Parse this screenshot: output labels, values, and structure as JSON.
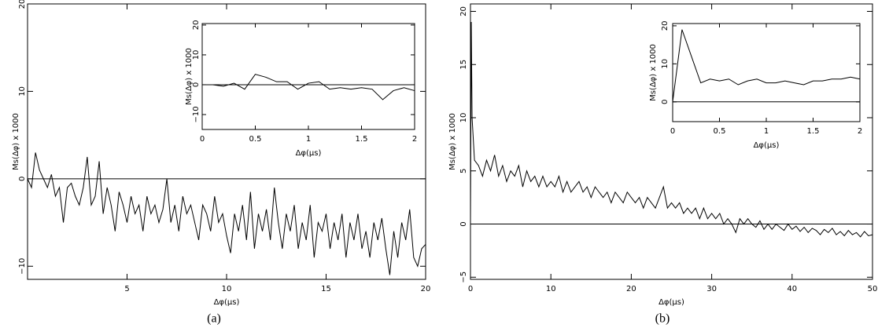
{
  "chart_data": [
    {
      "type": "line",
      "caption": "(a)",
      "xlabel": "Δφ(μs)",
      "ylabel": "Ms(Δφ) x 1000",
      "color": "#000000",
      "zeroline": true,
      "xlim": [
        0,
        20
      ],
      "ylim": [
        -11.5,
        20
      ],
      "xticks": [
        5,
        10,
        15,
        20
      ],
      "yticks": [
        {
          "value": -10,
          "label": "−10"
        },
        0,
        10,
        20
      ],
      "x": [
        0,
        0.2,
        0.4,
        0.6,
        0.8,
        1,
        1.2,
        1.4,
        1.6,
        1.8,
        2,
        2.2,
        2.4,
        2.6,
        2.8,
        3,
        3.2,
        3.4,
        3.6,
        3.8,
        4,
        4.2,
        4.4,
        4.6,
        4.8,
        5,
        5.2,
        5.4,
        5.6,
        5.8,
        6,
        6.2,
        6.4,
        6.6,
        6.8,
        7,
        7.2,
        7.4,
        7.6,
        7.8,
        8,
        8.2,
        8.4,
        8.6,
        8.8,
        9,
        9.2,
        9.4,
        9.6,
        9.8,
        10,
        10.2,
        10.4,
        10.6,
        10.8,
        11,
        11.2,
        11.4,
        11.6,
        11.8,
        12,
        12.2,
        12.4,
        12.6,
        12.8,
        13,
        13.2,
        13.4,
        13.6,
        13.8,
        14,
        14.2,
        14.4,
        14.6,
        14.8,
        15,
        15.2,
        15.4,
        15.6,
        15.8,
        16,
        16.2,
        16.4,
        16.6,
        16.8,
        17,
        17.2,
        17.4,
        17.6,
        17.8,
        18,
        18.2,
        18.4,
        18.6,
        18.8,
        19,
        19.2,
        19.4,
        19.6,
        19.8,
        20
      ],
      "values": [
        0,
        -1,
        3,
        1,
        0,
        -1,
        0.5,
        -2,
        -1,
        -5,
        -1,
        -0.5,
        -2,
        -3,
        -1,
        2.5,
        -3,
        -2,
        2,
        -4,
        -1,
        -3,
        -6,
        -1.5,
        -3,
        -5,
        -2,
        -4,
        -3,
        -6,
        -2,
        -4,
        -3,
        -5,
        -3.5,
        0,
        -5,
        -3,
        -6,
        -2,
        -4,
        -3,
        -5,
        -7,
        -3,
        -4,
        -6,
        -2,
        -5,
        -4,
        -6.5,
        -8.5,
        -4,
        -6,
        -3,
        -7,
        -1.5,
        -8,
        -4,
        -6,
        -3.5,
        -7,
        -1,
        -5,
        -8,
        -4,
        -6,
        -3,
        -8,
        -5,
        -7,
        -3,
        -9,
        -5,
        -6,
        -4,
        -8,
        -5,
        -7,
        -4,
        -9,
        -5,
        -7,
        -4,
        -8,
        -6,
        -9,
        -5,
        -7,
        -4.5,
        -8,
        -11,
        -6,
        -9,
        -5,
        -7,
        -3.5,
        -9,
        -10,
        -8,
        -7.5
      ]
    },
    {
      "type": "line",
      "xlabel": "Δφ(μs)",
      "ylabel": "Ms(Δφ) x 1000",
      "color": "#000000",
      "zeroline": true,
      "xlim": [
        0,
        2
      ],
      "ylim": [
        -15,
        20.5
      ],
      "xticks": [
        0,
        0.5,
        1,
        1.5,
        2
      ],
      "yticks": [
        {
          "value": -10,
          "label": "−10"
        },
        0,
        10,
        20
      ],
      "x": [
        0,
        0.1,
        0.2,
        0.3,
        0.4,
        0.5,
        0.6,
        0.7,
        0.8,
        0.9,
        1,
        1.1,
        1.2,
        1.3,
        1.4,
        1.5,
        1.6,
        1.7,
        1.8,
        1.9,
        2
      ],
      "values": [
        0,
        0,
        -0.5,
        0.5,
        -1.5,
        3.5,
        2.5,
        1,
        1,
        -1.5,
        0.5,
        1,
        -1.5,
        -1,
        -1.5,
        -1,
        -1.5,
        -5,
        -2,
        -1,
        -2
      ]
    },
    {
      "type": "line",
      "caption": "(b)",
      "xlabel": "Δφ(μs)",
      "ylabel": "Ms(Δφ) x 1000",
      "color": "#000000",
      "zeroline": true,
      "xlim": [
        0,
        50
      ],
      "ylim": [
        -5.2,
        20.7
      ],
      "xticks": [
        0,
        10,
        20,
        30,
        40,
        50
      ],
      "yticks": [
        {
          "value": -5,
          "label": "−5"
        },
        0,
        5,
        10,
        15,
        20
      ],
      "x": [
        0,
        0.1,
        0.2,
        0.5,
        1,
        1.5,
        2,
        2.5,
        3,
        3.5,
        4,
        4.5,
        5,
        5.5,
        6,
        6.5,
        7,
        7.5,
        8,
        8.5,
        9,
        9.5,
        10,
        10.5,
        11,
        11.5,
        12,
        12.5,
        13,
        13.5,
        14,
        14.5,
        15,
        15.5,
        16,
        16.5,
        17,
        17.5,
        18,
        18.5,
        19,
        19.5,
        20,
        20.5,
        21,
        21.5,
        22,
        22.5,
        23,
        23.5,
        24,
        24.5,
        25,
        25.5,
        26,
        26.5,
        27,
        27.5,
        28,
        28.5,
        29,
        29.5,
        30,
        30.5,
        31,
        31.5,
        32,
        32.5,
        33,
        33.5,
        34,
        34.5,
        35,
        35.5,
        36,
        36.5,
        37,
        37.5,
        38,
        38.5,
        39,
        39.5,
        40,
        40.5,
        41,
        41.5,
        42,
        42.5,
        43,
        43.5,
        44,
        44.5,
        45,
        45.5,
        46,
        46.5,
        47,
        47.5,
        48,
        48.5,
        49,
        49.5,
        50
      ],
      "values": [
        0,
        19,
        10,
        6,
        5.5,
        4.5,
        6,
        5,
        6.5,
        4.5,
        5.5,
        4,
        5,
        4.5,
        5.5,
        3.5,
        5,
        4,
        4.5,
        3.5,
        4.5,
        3.5,
        4,
        3.5,
        4.5,
        3,
        4,
        3,
        3.5,
        4,
        3,
        3.5,
        2.5,
        3.5,
        3,
        2.5,
        3,
        2,
        3,
        2.5,
        2,
        3,
        2.5,
        2,
        2.5,
        1.5,
        2.5,
        2,
        1.5,
        2.5,
        3.5,
        1.5,
        2,
        1.5,
        2,
        1,
        1.5,
        1,
        1.5,
        0.5,
        1.5,
        0.5,
        1,
        0.5,
        1,
        0,
        0.5,
        0,
        -0.8,
        0.5,
        0,
        0.5,
        0,
        -0.3,
        0.3,
        -0.5,
        0,
        -0.5,
        0,
        -0.3,
        -0.6,
        0,
        -0.5,
        -0.2,
        -0.7,
        -0.3,
        -0.8,
        -0.4,
        -0.6,
        -1,
        -0.5,
        -0.8,
        -0.4,
        -1,
        -0.7,
        -1.1,
        -0.6,
        -1,
        -0.8,
        -1.2,
        -0.7,
        -1.1,
        -1
      ]
    },
    {
      "type": "line",
      "xlabel": "Δφ(μs)",
      "ylabel": "Ms(Δφ) x 1000",
      "color": "#000000",
      "zeroline": true,
      "xlim": [
        0,
        2
      ],
      "ylim": [
        -5.2,
        20.6
      ],
      "xticks": [
        0,
        0.5,
        1,
        1.5,
        2
      ],
      "yticks": [
        0,
        10,
        20
      ],
      "x": [
        0,
        0.1,
        0.2,
        0.3,
        0.4,
        0.5,
        0.6,
        0.7,
        0.8,
        0.9,
        1,
        1.1,
        1.2,
        1.3,
        1.4,
        1.5,
        1.6,
        1.7,
        1.8,
        1.9,
        2
      ],
      "values": [
        0,
        19,
        12,
        5,
        6,
        5.5,
        6,
        4.5,
        5.5,
        6,
        5,
        5,
        5.5,
        5,
        4.5,
        5.5,
        5.5,
        6,
        6,
        6.5,
        6
      ]
    }
  ]
}
